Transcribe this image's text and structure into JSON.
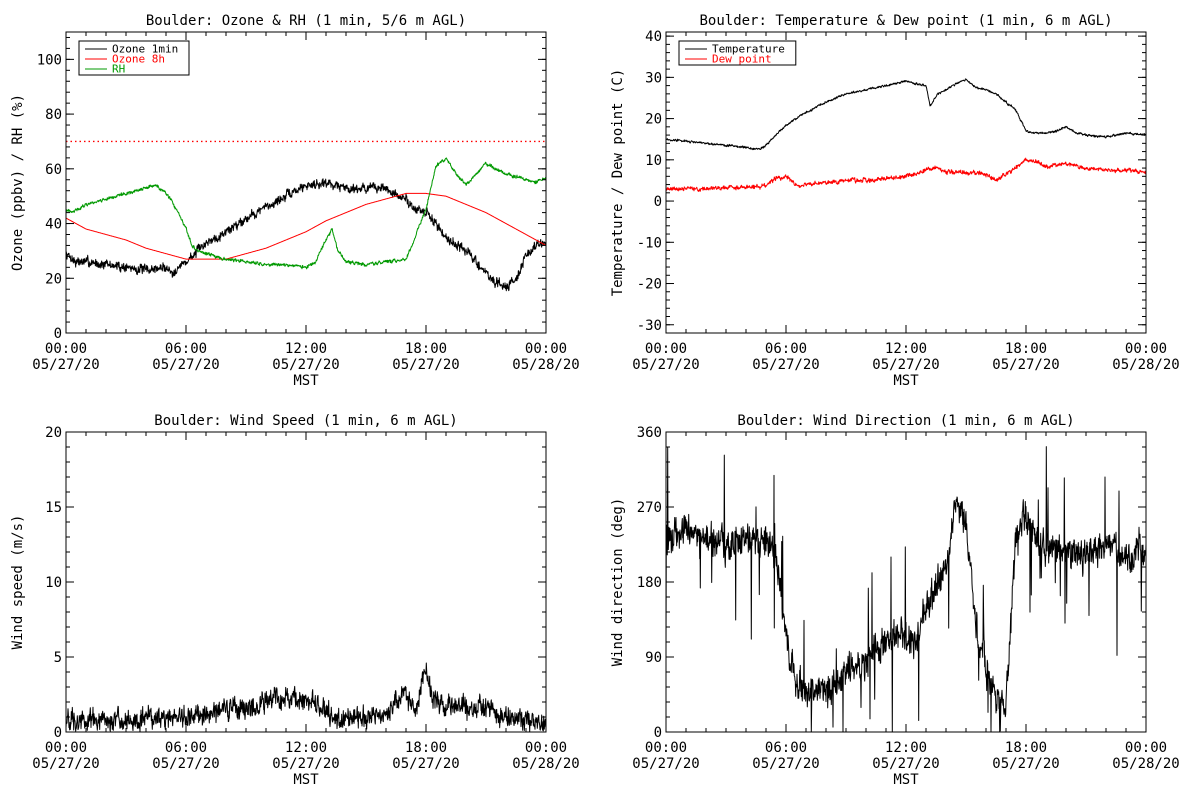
{
  "page": {
    "background": "#ffffff"
  },
  "chart_data": [
    {
      "id": "ozone_rh",
      "type": "line",
      "title": "Boulder: Ozone & RH (1 min, 5/6 m AGL)",
      "xlabel": "MST",
      "ylabel": "Ozone (ppbv) / RH (%)",
      "xlim": [
        0,
        24
      ],
      "ylim": [
        0,
        110
      ],
      "yticks": [
        0,
        20,
        40,
        60,
        80,
        100
      ],
      "xtick_labels": [
        [
          "00:00",
          "05/27/20"
        ],
        [
          "06:00",
          "05/27/20"
        ],
        [
          "12:00",
          "05/27/20"
        ],
        [
          "18:00",
          "05/27/20"
        ],
        [
          "00:00",
          "05/28/20"
        ]
      ],
      "legend_position": "top-left",
      "hline": {
        "y": 70,
        "color": "#ff0000",
        "style": "dotted"
      },
      "series": [
        {
          "name": "Ozone 1min",
          "color": "#000000",
          "noise": 2.0,
          "x": [
            0,
            0.5,
            1,
            2,
            3,
            4,
            5,
            5.3,
            5.6,
            6,
            6.3,
            6.6,
            7,
            8,
            9,
            10,
            11,
            12,
            13,
            14,
            15,
            16,
            16.5,
            17,
            17.5,
            18,
            18.5,
            19,
            20,
            20.5,
            21,
            21.5,
            22,
            22.5,
            23,
            23.5,
            24
          ],
          "y": [
            29,
            26,
            26,
            25,
            24,
            23,
            24,
            22,
            24,
            26,
            28,
            30,
            33,
            37,
            42,
            46,
            50,
            54,
            55,
            53,
            53,
            53,
            50,
            49,
            45,
            44,
            40,
            35,
            30,
            26,
            22,
            18,
            17,
            20,
            28,
            32,
            33
          ]
        },
        {
          "name": "Ozone 8h",
          "color": "#ff0000",
          "noise": 0,
          "x": [
            0,
            1,
            2,
            3,
            4,
            5,
            6,
            7,
            8,
            9,
            10,
            11,
            12,
            13,
            14,
            15,
            16,
            17,
            18,
            19,
            20,
            21,
            22,
            23,
            24
          ],
          "y": [
            42,
            38,
            36,
            34,
            31,
            29,
            27,
            27,
            27,
            29,
            31,
            34,
            37,
            41,
            44,
            47,
            49,
            51,
            51,
            50,
            47,
            44,
            40,
            36,
            32
          ]
        },
        {
          "name": "RH",
          "color": "#009900",
          "noise": 0.7,
          "x": [
            0,
            0.3,
            1,
            2,
            3,
            4,
            4.5,
            5,
            5.3,
            5.6,
            6,
            6.3,
            6.6,
            7,
            8,
            9,
            10,
            11,
            12,
            12.5,
            13,
            13.3,
            13.6,
            14,
            15,
            16,
            17,
            17.3,
            17.6,
            18,
            18.2,
            18.5,
            19,
            19.5,
            20,
            20.5,
            21,
            22,
            23,
            23.5,
            24
          ],
          "y": [
            45,
            44,
            47,
            49,
            51,
            53,
            54,
            51,
            48,
            44,
            38,
            32,
            30,
            29,
            27,
            26,
            25,
            25,
            24,
            26,
            34,
            38,
            30,
            26,
            25,
            26,
            27,
            32,
            38,
            45,
            52,
            61,
            64,
            58,
            54,
            58,
            62,
            58,
            56,
            55,
            57
          ]
        }
      ]
    },
    {
      "id": "temp_dew",
      "type": "line",
      "title": "Boulder: Temperature & Dew point (1 min, 6 m AGL)",
      "xlabel": "MST",
      "ylabel": "Temperature / Dew point (C)",
      "xlim": [
        0,
        24
      ],
      "ylim": [
        -32,
        41
      ],
      "yticks": [
        -30,
        -20,
        -10,
        0,
        10,
        20,
        30,
        40
      ],
      "xtick_labels": [
        [
          "00:00",
          "05/27/20"
        ],
        [
          "06:00",
          "05/27/20"
        ],
        [
          "12:00",
          "05/27/20"
        ],
        [
          "18:00",
          "05/27/20"
        ],
        [
          "00:00",
          "05/28/20"
        ]
      ],
      "legend_position": "top-left",
      "series": [
        {
          "name": "Temperature",
          "color": "#000000",
          "noise": 0.3,
          "x": [
            0,
            1,
            2,
            3,
            4,
            4.7,
            5,
            5.5,
            6,
            6.5,
            7,
            8,
            9,
            10,
            11,
            12,
            12.5,
            13,
            13.2,
            13.6,
            14,
            14.5,
            15,
            15.5,
            16,
            16.5,
            17,
            17.5,
            18,
            18.5,
            19,
            19.5,
            20,
            20.5,
            21,
            22,
            23,
            24
          ],
          "y": [
            15,
            14.5,
            14,
            13.5,
            13,
            12.5,
            13.5,
            16,
            18.5,
            20,
            21.5,
            24,
            26,
            27,
            28,
            29,
            28.5,
            28,
            23,
            26,
            27,
            28.5,
            29.5,
            27.5,
            27,
            26,
            24,
            22,
            17,
            16.5,
            16.5,
            17,
            18,
            16.5,
            16,
            15.5,
            16.5,
            16
          ]
        },
        {
          "name": "Dew point",
          "color": "#ff0000",
          "noise": 0.6,
          "x": [
            0,
            1,
            2,
            3,
            4,
            4.7,
            5,
            5.5,
            6,
            6.5,
            7,
            8,
            9,
            10,
            11,
            12,
            12.5,
            13,
            13.5,
            14,
            15,
            16,
            16.5,
            17,
            17.5,
            18,
            18.5,
            19,
            20,
            21,
            22,
            23,
            24
          ],
          "y": [
            3,
            3,
            3,
            3.2,
            3.3,
            3.5,
            4,
            5.5,
            6,
            4,
            4,
            4.5,
            5,
            5,
            5.5,
            6,
            6.5,
            7.5,
            8,
            7,
            7,
            6.5,
            5,
            6.5,
            8,
            10,
            9.5,
            8.5,
            9,
            8,
            7.5,
            7.5,
            7
          ]
        }
      ]
    },
    {
      "id": "wind_speed",
      "type": "line",
      "title": "Boulder: Wind Speed (1 min, 6 m AGL)",
      "xlabel": "MST",
      "ylabel": "Wind speed (m/s)",
      "xlim": [
        0,
        24
      ],
      "ylim": [
        0,
        20
      ],
      "yticks": [
        0,
        5,
        10,
        15,
        20
      ],
      "xtick_labels": [
        [
          "00:00",
          "05/27/20"
        ],
        [
          "06:00",
          "05/27/20"
        ],
        [
          "12:00",
          "05/27/20"
        ],
        [
          "18:00",
          "05/27/20"
        ],
        [
          "00:00",
          "05/28/20"
        ]
      ],
      "series": [
        {
          "name": "",
          "color": "#000000",
          "noise": 0.8,
          "floor": 0,
          "x": [
            0,
            1,
            2,
            3,
            4,
            5,
            6,
            7,
            8,
            9,
            10,
            11,
            12,
            13,
            13.5,
            14,
            15,
            16,
            16.5,
            17,
            17.5,
            17.8,
            18,
            18.3,
            18.6,
            19,
            20,
            21,
            22,
            23,
            24
          ],
          "y": [
            0.8,
            0.8,
            0.9,
            0.8,
            0.9,
            0.8,
            1.0,
            1.2,
            1.4,
            1.6,
            2.0,
            2.3,
            2.2,
            1.4,
            0.6,
            0.8,
            1.0,
            1.4,
            2.0,
            2.6,
            1.5,
            3.5,
            4.2,
            2.5,
            2.0,
            1.5,
            1.7,
            1.4,
            0.9,
            0.8,
            0.7
          ]
        }
      ]
    },
    {
      "id": "wind_dir",
      "type": "line",
      "title": "Boulder: Wind Direction (1 min, 6 m AGL)",
      "xlabel": "MST",
      "ylabel": "Wind direction (deg)",
      "xlim": [
        0,
        24
      ],
      "ylim": [
        0,
        360
      ],
      "yticks": [
        0,
        90,
        180,
        270,
        360
      ],
      "xtick_labels": [
        [
          "00:00",
          "05/27/20"
        ],
        [
          "06:00",
          "05/27/20"
        ],
        [
          "12:00",
          "05/27/20"
        ],
        [
          "18:00",
          "05/27/20"
        ],
        [
          "00:00",
          "05/28/20"
        ]
      ],
      "series": [
        {
          "name": "",
          "color": "#000000",
          "noise": 22,
          "floor": 0,
          "ceil": 360,
          "spikes": 0.05,
          "x": [
            0,
            1,
            2,
            3,
            4,
            5,
            5.5,
            6,
            6.5,
            7,
            8,
            9,
            10,
            11,
            12,
            12.5,
            13,
            13.5,
            14,
            14.5,
            15,
            15.5,
            16,
            16.5,
            17,
            17.5,
            18,
            18.5,
            19,
            20,
            21,
            22,
            23,
            24
          ],
          "y": [
            230,
            245,
            235,
            225,
            230,
            225,
            215,
            110,
            60,
            40,
            50,
            70,
            90,
            110,
            120,
            110,
            150,
            180,
            200,
            270,
            260,
            120,
            80,
            40,
            30,
            240,
            260,
            230,
            220,
            215,
            215,
            225,
            210,
            215
          ]
        }
      ]
    }
  ]
}
